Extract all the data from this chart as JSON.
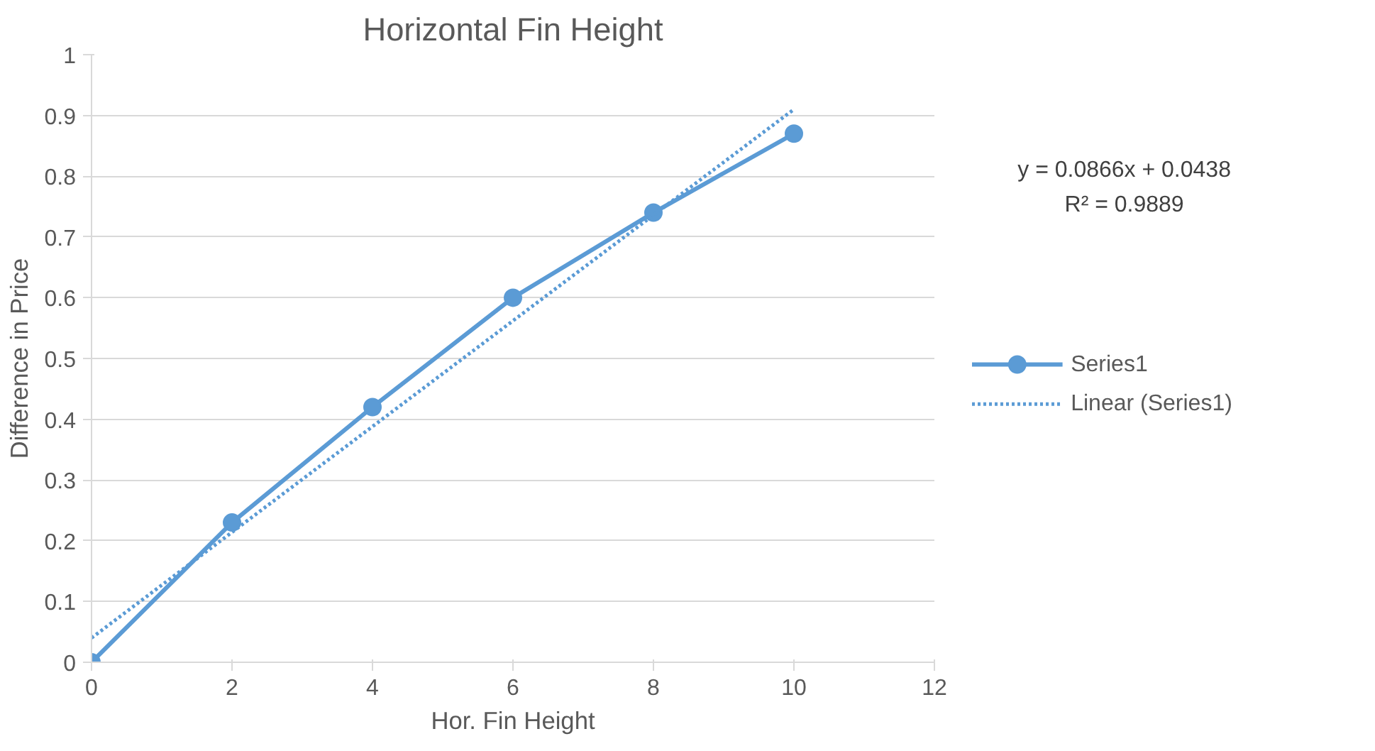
{
  "chart_data": {
    "type": "line",
    "title": "Horizontal Fin Height",
    "xlabel": "Hor. Fin Height",
    "ylabel": "Difference in Price",
    "xlim": [
      0,
      12
    ],
    "xticks": [
      0,
      2,
      4,
      6,
      8,
      10,
      12
    ],
    "ylim": [
      0,
      1
    ],
    "yticks": [
      0,
      0.1,
      0.2,
      0.3,
      0.4,
      0.5,
      0.6,
      0.7,
      0.8,
      0.9,
      1
    ],
    "grid": "y",
    "legend": "right",
    "annotations": [
      "y = 0.0866x + 0.0438",
      "R² = 0.9889"
    ],
    "series": [
      {
        "name": "Series1",
        "color": "#5b9bd5",
        "x": [
          0,
          2,
          4,
          6,
          8,
          10
        ],
        "values": [
          0,
          0.23,
          0.42,
          0.6,
          0.74,
          0.87
        ],
        "marker": "circle",
        "line_style": "solid"
      },
      {
        "name": "Linear (Series1)",
        "color": "#5b9bd5",
        "type": "line",
        "x": [
          0,
          10
        ],
        "values": [
          0.04,
          0.91
        ],
        "marker": "none",
        "line_style": "dotted"
      }
    ]
  }
}
